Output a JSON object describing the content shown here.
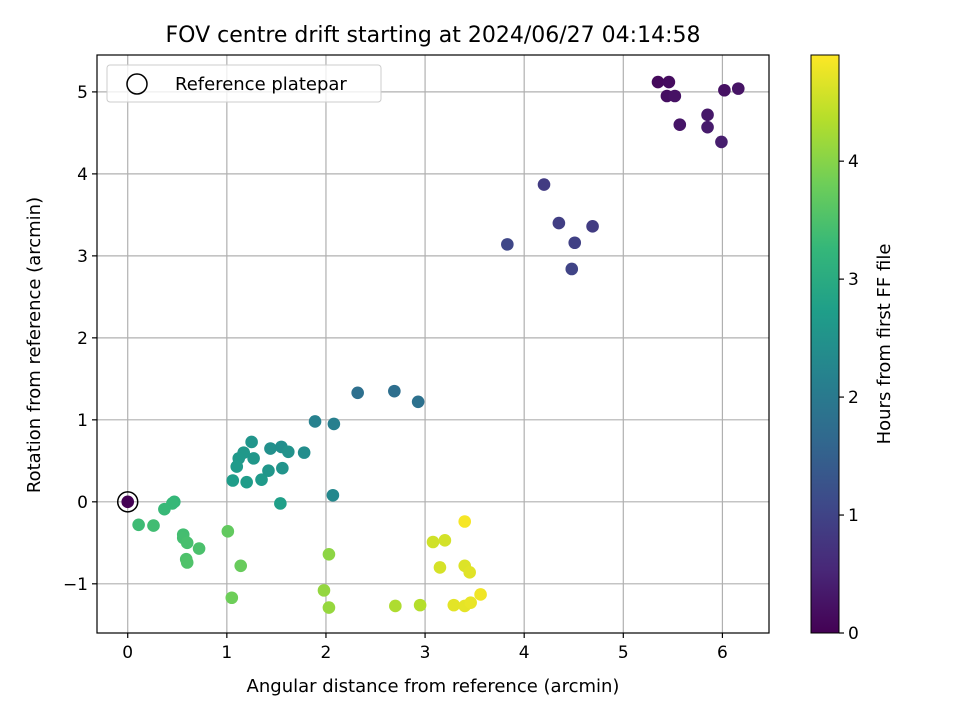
{
  "chart_data": {
    "type": "scatter",
    "title": "FOV centre drift starting at 2024/06/27 04:14:58",
    "xlabel": "Angular distance from reference (arcmin)",
    "ylabel": "Rotation from reference (arcmin)",
    "xlim": [
      -0.31,
      6.47
    ],
    "ylim": [
      -1.6,
      5.45
    ],
    "xticks": [
      0,
      1,
      2,
      3,
      4,
      5,
      6
    ],
    "yticks": [
      -1,
      0,
      1,
      2,
      3,
      4,
      5
    ],
    "grid": true,
    "legend": {
      "location": "upper-left",
      "entries": [
        "Reference platepar"
      ]
    },
    "reference_point": {
      "x": 0,
      "y": 0
    },
    "colorbar": {
      "label": "Hours from first FF file",
      "range": [
        0,
        4.9
      ],
      "ticks": [
        0,
        1,
        2,
        3,
        4
      ],
      "colormap": "viridis",
      "stops": [
        "#440154",
        "#482878",
        "#3e4989",
        "#31688e",
        "#26828e",
        "#1f9e89",
        "#35b779",
        "#6ece58",
        "#b5de2b",
        "#fde725"
      ]
    },
    "points": [
      {
        "x": 5.35,
        "y": 5.12,
        "h": 0.12
      },
      {
        "x": 5.46,
        "y": 5.12,
        "h": 0.16
      },
      {
        "x": 5.44,
        "y": 4.95,
        "h": 0.2
      },
      {
        "x": 5.52,
        "y": 4.95,
        "h": 0.24
      },
      {
        "x": 5.57,
        "y": 4.6,
        "h": 0.28
      },
      {
        "x": 5.85,
        "y": 4.72,
        "h": 0.32
      },
      {
        "x": 5.85,
        "y": 4.57,
        "h": 0.36
      },
      {
        "x": 5.99,
        "y": 4.39,
        "h": 0.4
      },
      {
        "x": 6.02,
        "y": 5.02,
        "h": 0.22
      },
      {
        "x": 6.16,
        "y": 5.04,
        "h": 0.26
      },
      {
        "x": 4.2,
        "y": 3.87,
        "h": 0.85
      },
      {
        "x": 4.35,
        "y": 3.4,
        "h": 0.9
      },
      {
        "x": 4.51,
        "y": 3.16,
        "h": 0.95
      },
      {
        "x": 4.69,
        "y": 3.36,
        "h": 0.88
      },
      {
        "x": 4.48,
        "y": 2.84,
        "h": 1.0
      },
      {
        "x": 3.83,
        "y": 3.14,
        "h": 1.05
      },
      {
        "x": 2.32,
        "y": 1.33,
        "h": 1.8
      },
      {
        "x": 2.69,
        "y": 1.35,
        "h": 1.78
      },
      {
        "x": 2.93,
        "y": 1.22,
        "h": 1.82
      },
      {
        "x": 1.89,
        "y": 0.98,
        "h": 2.15
      },
      {
        "x": 2.08,
        "y": 0.95,
        "h": 2.12
      },
      {
        "x": 2.07,
        "y": 0.08,
        "h": 2.3
      },
      {
        "x": 1.25,
        "y": 0.73,
        "h": 2.55
      },
      {
        "x": 1.17,
        "y": 0.6,
        "h": 2.6
      },
      {
        "x": 1.27,
        "y": 0.53,
        "h": 2.58
      },
      {
        "x": 1.12,
        "y": 0.53,
        "h": 2.62
      },
      {
        "x": 1.1,
        "y": 0.43,
        "h": 2.66
      },
      {
        "x": 1.06,
        "y": 0.26,
        "h": 2.7
      },
      {
        "x": 1.2,
        "y": 0.24,
        "h": 2.68
      },
      {
        "x": 1.35,
        "y": 0.27,
        "h": 2.64
      },
      {
        "x": 1.42,
        "y": 0.38,
        "h": 2.56
      },
      {
        "x": 1.44,
        "y": 0.65,
        "h": 2.45
      },
      {
        "x": 1.55,
        "y": 0.67,
        "h": 2.42
      },
      {
        "x": 1.62,
        "y": 0.61,
        "h": 2.48
      },
      {
        "x": 1.78,
        "y": 0.6,
        "h": 2.4
      },
      {
        "x": 1.56,
        "y": 0.41,
        "h": 2.52
      },
      {
        "x": 1.54,
        "y": -0.02,
        "h": 2.75
      },
      {
        "x": 0.47,
        "y": 0.0,
        "h": 3.25
      },
      {
        "x": 0.45,
        "y": -0.02,
        "h": 3.28
      },
      {
        "x": 0.37,
        "y": -0.09,
        "h": 3.3
      },
      {
        "x": 0.11,
        "y": -0.28,
        "h": 3.35
      },
      {
        "x": 0.26,
        "y": -0.29,
        "h": 3.38
      },
      {
        "x": 0.56,
        "y": -0.4,
        "h": 3.4
      },
      {
        "x": 0.56,
        "y": -0.44,
        "h": 3.42
      },
      {
        "x": 0.6,
        "y": -0.5,
        "h": 3.45
      },
      {
        "x": 0.72,
        "y": -0.57,
        "h": 3.48
      },
      {
        "x": 0.59,
        "y": -0.7,
        "h": 3.5
      },
      {
        "x": 0.6,
        "y": -0.74,
        "h": 3.52
      },
      {
        "x": 1.01,
        "y": -0.36,
        "h": 3.7
      },
      {
        "x": 1.14,
        "y": -0.78,
        "h": 3.75
      },
      {
        "x": 1.05,
        "y": -1.17,
        "h": 3.8
      },
      {
        "x": 2.03,
        "y": -0.64,
        "h": 4.05
      },
      {
        "x": 1.98,
        "y": -1.08,
        "h": 4.1
      },
      {
        "x": 2.03,
        "y": -1.29,
        "h": 4.12
      },
      {
        "x": 2.7,
        "y": -1.27,
        "h": 4.3
      },
      {
        "x": 2.95,
        "y": -1.26,
        "h": 4.35
      },
      {
        "x": 3.08,
        "y": -0.49,
        "h": 4.55
      },
      {
        "x": 3.2,
        "y": -0.47,
        "h": 4.58
      },
      {
        "x": 3.15,
        "y": -0.8,
        "h": 4.6
      },
      {
        "x": 3.4,
        "y": -0.78,
        "h": 4.65
      },
      {
        "x": 3.45,
        "y": -0.86,
        "h": 4.68
      },
      {
        "x": 3.4,
        "y": -0.24,
        "h": 4.85
      },
      {
        "x": 3.29,
        "y": -1.26,
        "h": 4.7
      },
      {
        "x": 3.4,
        "y": -1.27,
        "h": 4.72
      },
      {
        "x": 3.46,
        "y": -1.23,
        "h": 4.75
      },
      {
        "x": 3.56,
        "y": -1.13,
        "h": 4.8
      }
    ]
  }
}
